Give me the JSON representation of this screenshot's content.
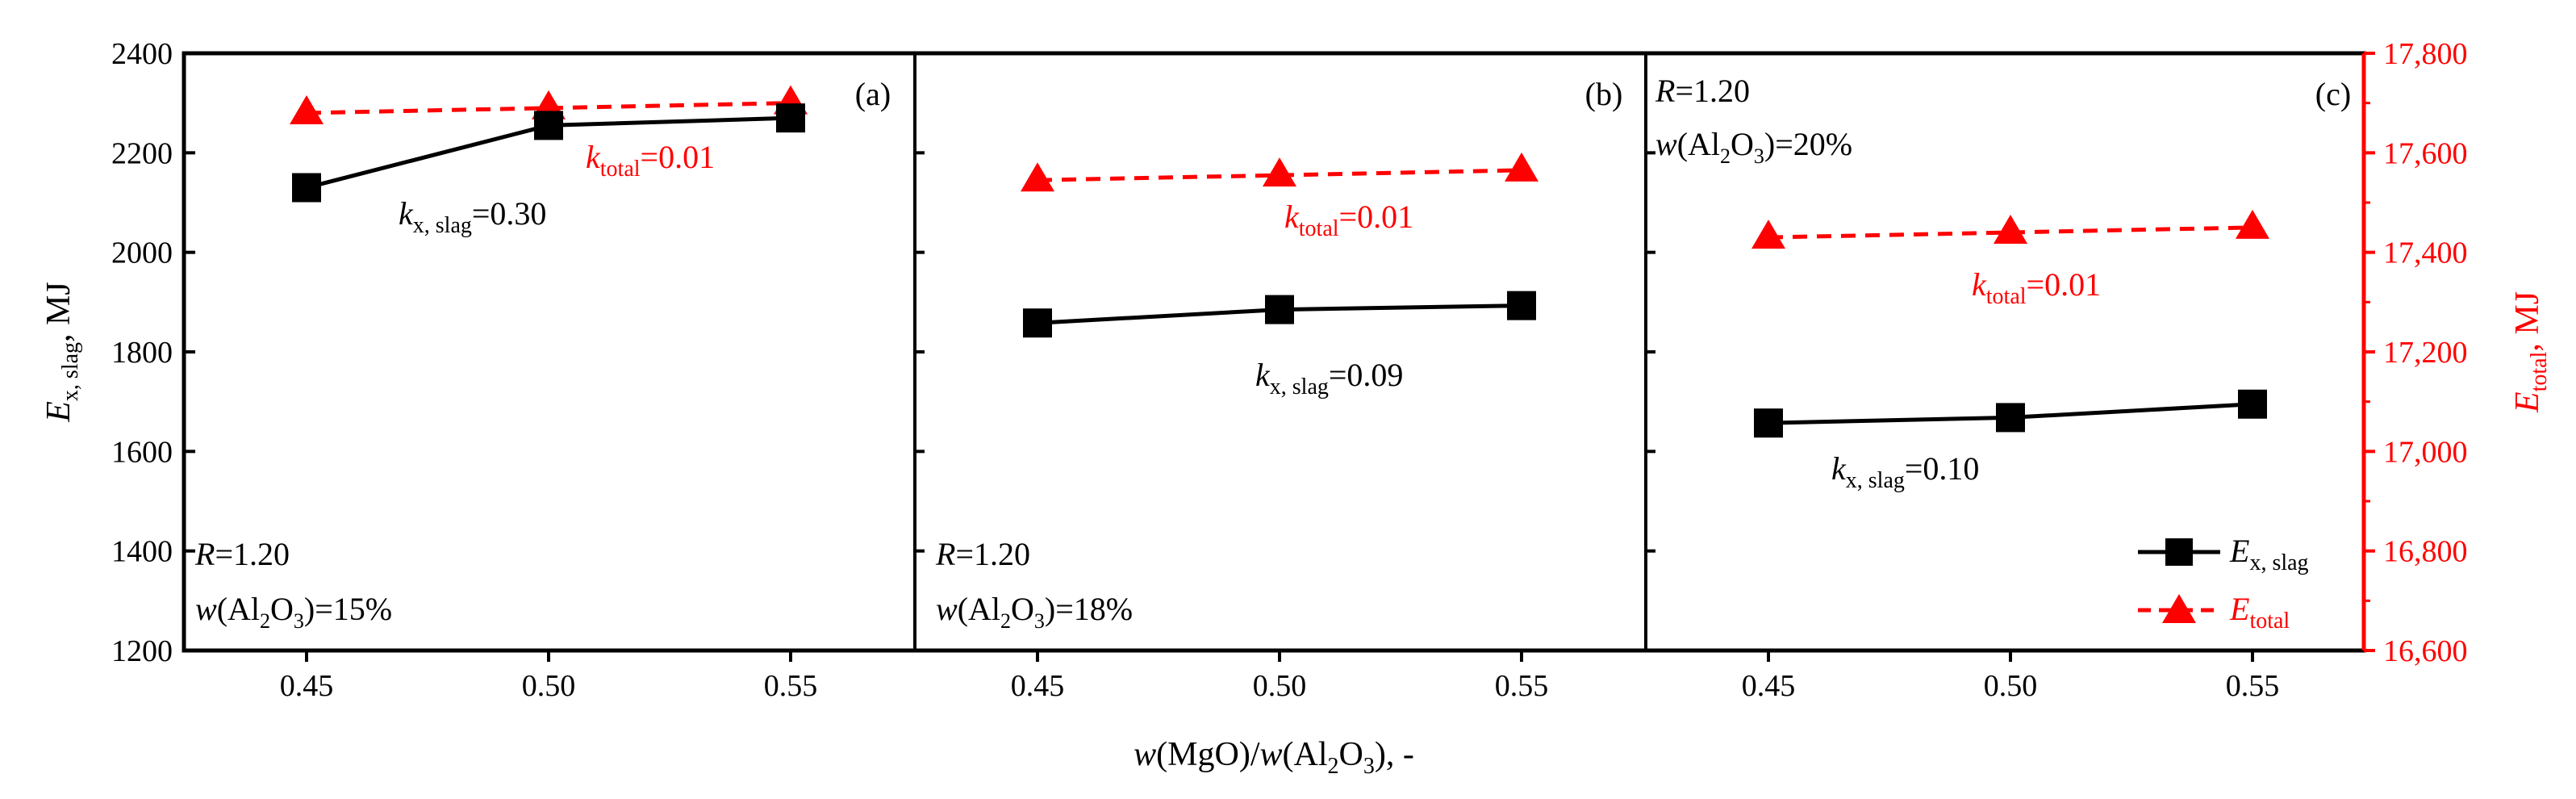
{
  "chart_data": {
    "type": "line",
    "layout": "three panels sharing x-axis; left y-axis for E_x,slag, right y-axis (red) for E_total",
    "xlabel": {
      "pre": "w",
      "mid1": "(MgO)/",
      "w2": "w",
      "mid2": "(Al",
      "sub": "2",
      "post": "O",
      "sub2": "3",
      "tail": "), -"
    },
    "ylabel_left": {
      "main": "E",
      "sub": "x, slag",
      "unit": ", MJ"
    },
    "ylabel_right": {
      "main": "E",
      "sub": "total",
      "unit": ", MJ"
    },
    "yleft_lim": [
      1200,
      2400
    ],
    "yleft_ticks": [
      "1200",
      "1400",
      "1600",
      "1800",
      "2000",
      "2200",
      "2400"
    ],
    "yright_lim": [
      16600,
      17800
    ],
    "yright_ticks": [
      "16,600",
      "16,800",
      "17,000",
      "17,200",
      "17,400",
      "17,600",
      "17,800"
    ],
    "x_ticks": [
      "0.45",
      "0.50",
      "0.55"
    ],
    "x_values": [
      0.45,
      0.5,
      0.55
    ],
    "colors": {
      "ex_slag": "#000000",
      "e_total": "#ff0000"
    },
    "legend": {
      "placement": "bottom-right of panel (c)",
      "ex_slag": {
        "main": "E",
        "sub": "x, slag"
      },
      "e_total": {
        "main": "E",
        "sub": "total"
      }
    },
    "panels": [
      {
        "tag": "(a)",
        "R_label": "=1.20",
        "w_label": {
          "pre": "(Al",
          "sub": "2",
          "mid": "O",
          "sub2": "3",
          "post": ")=15%"
        },
        "ex_slag": [
          2130,
          2255,
          2270
        ],
        "e_total": [
          17680,
          17690,
          17700
        ],
        "k_slag": {
          "k": "k",
          "sub": "x, slag",
          "val": "=0.30"
        },
        "k_total": {
          "k": "k",
          "sub": "total",
          "val": "=0.01"
        }
      },
      {
        "tag": "(b)",
        "R_label": "=1.20",
        "w_label": {
          "pre": "(Al",
          "sub": "2",
          "mid": "O",
          "sub2": "3",
          "post": ")=18%"
        },
        "ex_slag": [
          1858,
          1885,
          1893
        ],
        "e_total": [
          17545,
          17555,
          17565
        ],
        "k_slag": {
          "k": "k",
          "sub": "x, slag",
          "val": "=0.09"
        },
        "k_total": {
          "k": "k",
          "sub": "total",
          "val": "=0.01"
        }
      },
      {
        "tag": "(c)",
        "R_label": "=1.20",
        "w_label": {
          "pre": "(Al",
          "sub": "2",
          "mid": "O",
          "sub2": "3",
          "post": ")=20%"
        },
        "ex_slag": [
          1657,
          1668,
          1695
        ],
        "e_total": [
          17430,
          17440,
          17450
        ],
        "k_slag": {
          "k": "k",
          "sub": "x, slag",
          "val": "=0.10"
        },
        "k_total": {
          "k": "k",
          "sub": "total",
          "val": "=0.01"
        }
      }
    ]
  }
}
